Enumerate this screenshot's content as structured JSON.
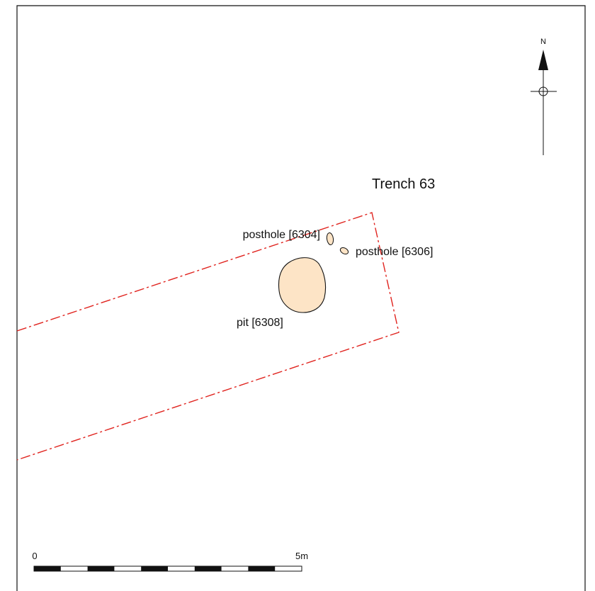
{
  "north_label": "N",
  "trench_label": "Trench 63",
  "features": [
    {
      "id": "posthole-6304",
      "label": "posthole [6304]"
    },
    {
      "id": "posthole-6306",
      "label": "posthole [6306]"
    },
    {
      "id": "pit-6308",
      "label": "pit [6308]"
    }
  ],
  "scale_bar": {
    "start_label": "0",
    "end_label": "5m",
    "segments": 10
  },
  "colors": {
    "trench_outline": "#e0231e",
    "feature_fill": "#fde4c6",
    "feature_stroke": "#111111",
    "frame": "#111111"
  }
}
